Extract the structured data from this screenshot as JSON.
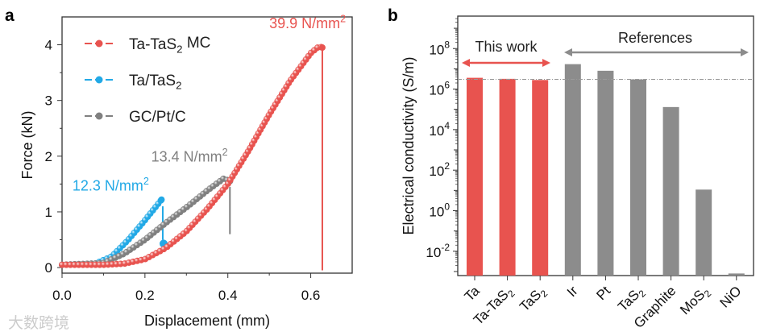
{
  "watermark": "大数跨境",
  "chart_data": [
    {
      "panel": "a",
      "type": "line",
      "xlabel": "Displacement (mm)",
      "ylabel": "Force (kN)",
      "xlim": [
        0,
        0.7
      ],
      "ylim": [
        -0.1,
        4.5
      ],
      "xticks": [
        "0.0",
        "0.2",
        "0.4",
        "0.6"
      ],
      "xtick_values": [
        0,
        0.2,
        0.4,
        0.6
      ],
      "yticks": [
        "0",
        "1",
        "2",
        "3",
        "4"
      ],
      "ytick_values": [
        0,
        1,
        2,
        3,
        4
      ],
      "series": [
        {
          "name": "Ta-TaS2 MC",
          "legend_main": "Ta-TaS",
          "legend_sub": "2",
          "legend_tail": " MC",
          "color": "#e8534f",
          "points": [
            [
              0,
              0.05
            ],
            [
              0.1,
              0.05
            ],
            [
              0.15,
              0.07
            ],
            [
              0.2,
              0.15
            ],
            [
              0.25,
              0.35
            ],
            [
              0.3,
              0.65
            ],
            [
              0.35,
              1.05
            ],
            [
              0.4,
              1.5
            ],
            [
              0.45,
              2.1
            ],
            [
              0.5,
              2.75
            ],
            [
              0.55,
              3.35
            ],
            [
              0.6,
              3.85
            ],
            [
              0.62,
              3.97
            ],
            [
              0.628,
              3.95
            ]
          ],
          "drop": {
            "x": 0.628,
            "from": 3.95,
            "to": -0.05
          },
          "annotation": {
            "value": "39.9",
            "unit": "N/mm",
            "sup": "2",
            "x": 0.5,
            "y": 4.3
          }
        },
        {
          "name": "Ta/TaS2",
          "legend_main": "Ta/TaS",
          "legend_sub": "2",
          "legend_tail": "",
          "color": "#22a9e6",
          "points": [
            [
              0,
              0.05
            ],
            [
              0.08,
              0.07
            ],
            [
              0.12,
              0.2
            ],
            [
              0.16,
              0.5
            ],
            [
              0.2,
              0.85
            ],
            [
              0.24,
              1.22
            ]
          ],
          "drop": {
            "x": 0.243,
            "from": 1.1,
            "to": 0.5
          },
          "extra_point": [
            0.245,
            0.43
          ],
          "annotation": {
            "value": "12.3",
            "unit": "N/mm",
            "sup": "2",
            "x": 0.025,
            "y": 1.38
          }
        },
        {
          "name": "GC/Pt/C",
          "legend_main": "GC/Pt/C",
          "legend_sub": "",
          "legend_tail": "",
          "color": "#808080",
          "points": [
            [
              0,
              0.05
            ],
            [
              0.1,
              0.08
            ],
            [
              0.15,
              0.25
            ],
            [
              0.2,
              0.5
            ],
            [
              0.25,
              0.8
            ],
            [
              0.3,
              1.08
            ],
            [
              0.35,
              1.38
            ],
            [
              0.39,
              1.6
            ],
            [
              0.405,
              1.55
            ]
          ],
          "drop": {
            "x": 0.405,
            "from": 1.45,
            "to": 0.6
          },
          "annotation": {
            "value": "13.4",
            "unit": "N/mm",
            "sup": "2",
            "x": 0.215,
            "y": 1.9
          }
        }
      ]
    },
    {
      "panel": "b",
      "type": "bar",
      "ylabel": "Electrical conductivity (S/m)",
      "yscale": "log",
      "ylim_log10": [
        -3.2,
        9.6
      ],
      "ytick_exponents": [
        "8",
        "6",
        "4",
        "2",
        "0",
        "-2"
      ],
      "ytick_base": "10",
      "categories": [
        {
          "main": "Ta",
          "sub": "",
          "tail": ""
        },
        {
          "main": "Ta-TaS",
          "sub": "2",
          "tail": ""
        },
        {
          "main": "TaS",
          "sub": "2",
          "tail": ""
        },
        {
          "main": "Ir",
          "sub": "",
          "tail": ""
        },
        {
          "main": "Pt",
          "sub": "",
          "tail": ""
        },
        {
          "main": "TaS",
          "sub": "2",
          "tail": ""
        },
        {
          "main": "Graphite",
          "sub": "",
          "tail": ""
        },
        {
          "main": "MoS",
          "sub": "2",
          "tail": ""
        },
        {
          "main": "NiO",
          "sub": "",
          "tail": ""
        }
      ],
      "values": [
        3600000.0,
        3200000.0,
        2800000.0,
        17000000.0,
        8000000.0,
        3000000.0,
        130000.0,
        11,
        0.0008
      ],
      "groups": [
        {
          "label": "This work",
          "color": "#e8534f",
          "count": 3
        },
        {
          "label": "References",
          "color": "#8c8c8c",
          "count": 6
        }
      ],
      "reference_line": 3000000.0
    }
  ]
}
